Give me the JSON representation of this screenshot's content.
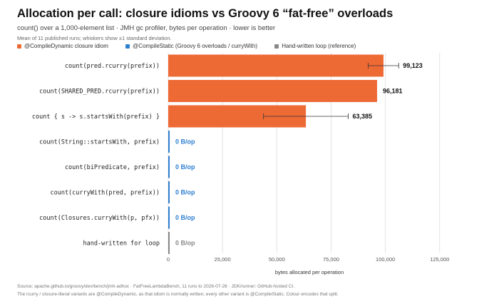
{
  "header": {
    "title": "Allocation per call: closure idioms vs Groovy 6 “fat-free” overloads",
    "subtitle": "count() over a 1,000-element list · JMH gc profiler, bytes per operation · lower is better",
    "note": "Mean of 11 published runs; whiskers show ±1 standard deviation."
  },
  "legend": [
    {
      "label": "@CompileDynamic closure idiom",
      "color": "#ee6a35"
    },
    {
      "label": "@CompileStatic (Groovy 6 overloads / curryWith)",
      "color": "#2f7fd0"
    },
    {
      "label": "Hand-written loop (reference)",
      "color": "#888888"
    }
  ],
  "footer": {
    "line1": "Source: apache.github.io/groovy/dev/bench/jmh-adhoc · FatFreeLambdaBench, 11 runs to 2026-07-26 · JDK/runner: GitHub-hosted CI.",
    "line2": "The rcurry / closure-literal variants are @CompileDynamic, as that idiom is normally written; every other variant is @CompileStatic. Colour encodes that split."
  },
  "chart_data": {
    "type": "bar",
    "orientation": "horizontal",
    "categories": [
      "count(pred.rcurry(prefix))",
      "count(SHARED_PRED.rcurry(prefix))",
      "count { s -> s.startsWith(prefix) }",
      "count(String::startsWith, prefix)",
      "count(biPredicate, prefix)",
      "count(curryWith(pred, prefix))",
      "count(Closures.curryWith(p, pfx))",
      "hand-written for loop"
    ],
    "values": [
      99123,
      96181,
      63385,
      0,
      0,
      0,
      0,
      0
    ],
    "error": [
      7000,
      0,
      19500,
      0,
      0,
      0,
      0,
      0
    ],
    "value_labels": [
      "99,123",
      "96,181",
      "63,385",
      "0 B/op",
      "0 B/op",
      "0 B/op",
      "0 B/op",
      "0 B/op"
    ],
    "groups": [
      "dynamic",
      "dynamic",
      "dynamic",
      "static",
      "static",
      "static",
      "static",
      "loop"
    ],
    "group_colors": {
      "dynamic": "#ee6a35",
      "static": "#2f7fd0",
      "loop": "#888888"
    },
    "label_colors": {
      "dynamic": "#111111",
      "static": "#2f7fd0",
      "loop": "#888888"
    },
    "xlabel": "bytes allocated per operation",
    "xlim": [
      0,
      130000
    ],
    "xticks": [
      0,
      25000,
      50000,
      75000,
      100000,
      125000
    ],
    "xtick_labels": [
      "0",
      "25,000",
      "50,000",
      "75,000",
      "100,000",
      "125,000"
    ],
    "grid": true
  }
}
